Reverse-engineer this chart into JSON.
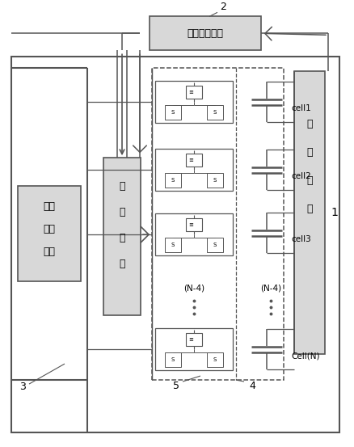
{
  "title_text": "智能控制模块",
  "label_2": "2",
  "label_1": "1",
  "label_3": "3",
  "label_4": "4",
  "label_5": "5",
  "charge_lines": [
    "充电",
    "机或",
    "负载"
  ],
  "drive_lines": [
    "驱",
    "动",
    "模",
    "块"
  ],
  "sample_lines": [
    "采",
    "样",
    "模",
    "块"
  ],
  "cell_labels": [
    "cell1",
    "cell2",
    "cell3",
    "Cell(N)"
  ],
  "n4_label": "(N-4)",
  "fig_w": 4.39,
  "fig_h": 5.53,
  "dpi": 100,
  "lc": "#555555",
  "gray_fill": "#d8d8d8",
  "white": "white"
}
